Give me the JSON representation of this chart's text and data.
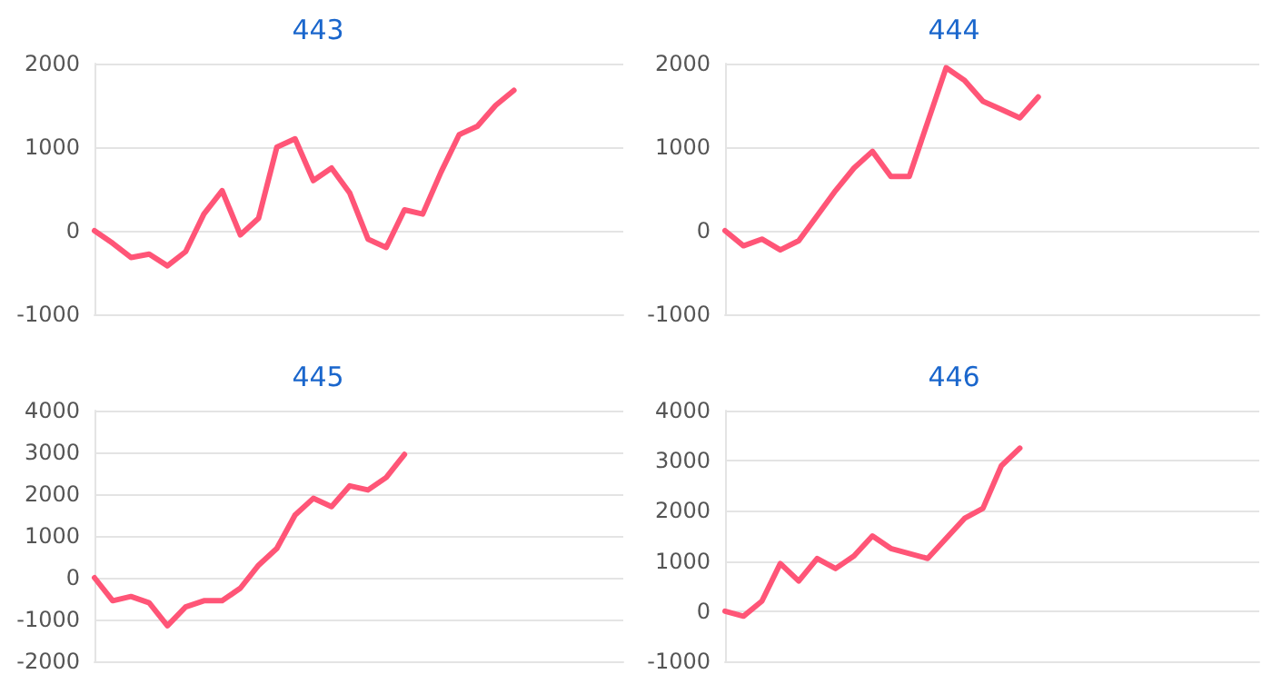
{
  "chart_data": [
    {
      "type": "line",
      "title": "443",
      "categories": [
        null,
        null,
        null,
        null,
        null,
        null,
        null,
        null,
        null,
        null,
        null,
        null,
        null,
        null,
        null,
        null,
        null,
        null,
        null,
        null,
        null,
        null,
        null,
        null,
        null,
        null,
        null,
        null,
        null,
        null
      ],
      "series": [
        {
          "color": "#ff5577",
          "values": [
            0,
            -150,
            -320,
            -280,
            -420,
            -250,
            200,
            480,
            -50,
            150,
            1000,
            1100,
            600,
            750,
            450,
            -100,
            -200,
            250,
            200,
            700,
            1150,
            1250,
            1500,
            1680,
            null,
            null,
            null,
            null,
            null,
            null
          ]
        }
      ],
      "ylim": [
        -1000,
        2000
      ],
      "yticks": [
        -1000,
        0,
        1000,
        2000
      ],
      "grid": "y",
      "marker": "none"
    },
    {
      "type": "line",
      "title": "444",
      "categories": [
        null,
        null,
        null,
        null,
        null,
        null,
        null,
        null,
        null,
        null,
        null,
        null,
        null,
        null,
        null,
        null,
        null,
        null,
        null,
        null,
        null,
        null,
        null,
        null,
        null,
        null,
        null,
        null,
        null,
        null
      ],
      "series": [
        {
          "color": "#ff5577",
          "values": [
            0,
            -180,
            -100,
            -230,
            -120,
            180,
            480,
            750,
            950,
            650,
            650,
            1300,
            1950,
            1800,
            1550,
            1450,
            1350,
            1600,
            null,
            null,
            null,
            null,
            null,
            null,
            null,
            null,
            null,
            null,
            null,
            null
          ]
        }
      ],
      "ylim": [
        -1000,
        2000
      ],
      "yticks": [
        -1000,
        0,
        1000,
        2000
      ],
      "grid": "y",
      "marker": "none"
    },
    {
      "type": "line",
      "title": "445",
      "categories": [
        null,
        null,
        null,
        null,
        null,
        null,
        null,
        null,
        null,
        null,
        null,
        null,
        null,
        null,
        null,
        null,
        null,
        null,
        null,
        null,
        null,
        null,
        null,
        null,
        null,
        null,
        null,
        null,
        null,
        null
      ],
      "series": [
        {
          "color": "#ff5577",
          "values": [
            0,
            -550,
            -450,
            -600,
            -1150,
            -700,
            -550,
            -550,
            -250,
            300,
            700,
            1500,
            1900,
            1700,
            2200,
            2100,
            2400,
            2950,
            null,
            null,
            null,
            null,
            null,
            null,
            null,
            null,
            null,
            null,
            null,
            null
          ]
        }
      ],
      "ylim": [
        -2000,
        4000
      ],
      "yticks": [
        -2000,
        -1000,
        0,
        1000,
        2000,
        3000,
        4000
      ],
      "grid": "y",
      "marker": "none"
    },
    {
      "type": "line",
      "title": "446",
      "categories": [
        null,
        null,
        null,
        null,
        null,
        null,
        null,
        null,
        null,
        null,
        null,
        null,
        null,
        null,
        null,
        null,
        null,
        null,
        null,
        null,
        null,
        null,
        null,
        null,
        null,
        null,
        null,
        null,
        null,
        null
      ],
      "series": [
        {
          "color": "#ff5577",
          "values": [
            0,
            -100,
            200,
            950,
            600,
            1050,
            850,
            1100,
            1500,
            1250,
            1150,
            1050,
            1450,
            1850,
            2050,
            2900,
            3250,
            null,
            null,
            null,
            null,
            null,
            null,
            null,
            null,
            null,
            null,
            null,
            null,
            null
          ]
        }
      ],
      "ylim": [
        -1000,
        4000
      ],
      "yticks": [
        -1000,
        0,
        1000,
        2000,
        3000,
        4000
      ],
      "grid": "y",
      "marker": "none"
    }
  ]
}
